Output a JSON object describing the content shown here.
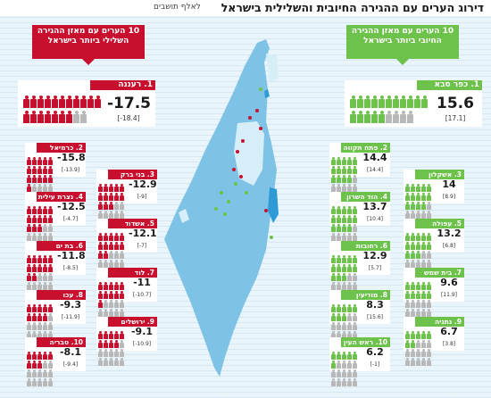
{
  "header": {
    "title": "דירוג הערים עם ההגירה החיובית והשלילית בישראל",
    "unit": "לאלף תושבים"
  },
  "legends": {
    "positive": "10 הערים עם מאזן ההגירה החיובי ביותר בישראל",
    "negative": "10 הערים עם מאזן ההגירה השלילי ביותר בישראל"
  },
  "colors": {
    "positive": "#6cc24a",
    "negative": "#c8102e",
    "person_inactive": "#b8b8b8",
    "map_land": "#7ec3e6",
    "map_water": "#2f9bd6",
    "background": "#eaf5fb"
  },
  "chart_data": [
    {
      "type": "bar",
      "categories": [
        "1. כפר סבא",
        "2. פתח תקווה",
        "3. אשקלון",
        "4. הוד השרון",
        "5. עפולה",
        "6. רחובות",
        "7. בית שמש",
        "8. מודיעין",
        "9. נתניה",
        "10. ראש העין"
      ],
      "values": [
        15.6,
        14.4,
        14,
        13.7,
        13.2,
        12.9,
        9.6,
        8.3,
        6.7,
        6.2
      ],
      "previous_labels": [
        "[17.1]",
        "[14.4]",
        "[8.9]",
        "[10.4]",
        "[6.8]",
        "[5.7]",
        "[11.9]",
        "[15.6]",
        "[3.8]",
        "[-1]"
      ],
      "value_labels": [
        "15.6",
        "14.4",
        "14",
        "13.7",
        "13.2",
        "12.9",
        "9.6",
        "8.3",
        "6.7",
        "6.2"
      ]
    },
    {
      "type": "bar",
      "categories": [
        "1. רעננה",
        "2. כרמיאל",
        "3. בני ברק",
        "4. נצרת עילית",
        "5. אשדוד",
        "6. בת ים",
        "7. לוד",
        "8. עכו",
        "9. ירושלים",
        "10. טבריה"
      ],
      "values": [
        -17.5,
        -15.8,
        -12.9,
        -12.5,
        -12.1,
        -11.8,
        -11,
        -9.3,
        -9.1,
        -8.1
      ],
      "previous_labels": [
        "[-18.4]",
        "[-13.9]",
        "[-9]",
        "[-4.7]",
        "[-7]",
        "[-8.5]",
        "[-10.7]",
        "[-11.9]",
        "[-10.9]",
        "[-9.4]"
      ],
      "value_labels": [
        "-17.5",
        "-15.8",
        "-12.9",
        "-12.5",
        "-12.1",
        "-11.8",
        "-11",
        "-9.3",
        "-9.1",
        "-8.1"
      ]
    }
  ]
}
